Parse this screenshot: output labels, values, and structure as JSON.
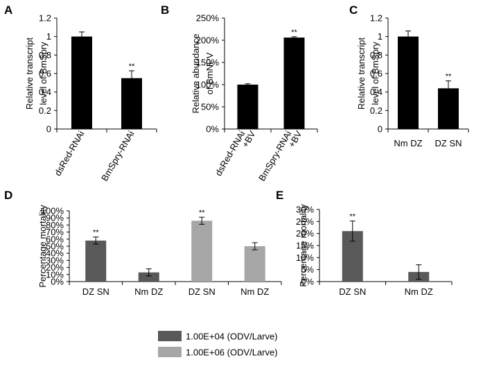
{
  "chart_data": [
    {
      "panel": "A",
      "type": "bar",
      "categories": [
        "dsRed-RNAi",
        "BmSpry-RNAi"
      ],
      "values": [
        1.0,
        0.55
      ],
      "errors": [
        0.05,
        0.08
      ],
      "significance": [
        "",
        "**"
      ],
      "ylabel": [
        "Relative transcript",
        "level of BmSpry"
      ],
      "ylim": [
        0,
        1.2
      ],
      "yticks": [
        "0",
        "0.2",
        "0.4",
        "0.6",
        "0.8",
        "1",
        "1.2"
      ],
      "bar_color": "#000000"
    },
    {
      "panel": "B",
      "type": "bar",
      "categories": [
        [
          "dsRed-RNAi",
          "+BV"
        ],
        [
          "BmSpry-RNAi",
          "+BV"
        ]
      ],
      "values": [
        100,
        206
      ],
      "errors": [
        2,
        2
      ],
      "significance": [
        "",
        "**"
      ],
      "ylabel": [
        "Relative abundance",
        "of BmNPV"
      ],
      "ylim": [
        0,
        250
      ],
      "yticks": [
        "0%",
        "50%",
        "100%",
        "150%",
        "200%",
        "250%"
      ],
      "bar_color": "#000000"
    },
    {
      "panel": "C",
      "type": "bar",
      "categories": [
        "Nm DZ",
        "DZ SN"
      ],
      "values": [
        1.0,
        0.44
      ],
      "errors": [
        0.06,
        0.08
      ],
      "significance": [
        "",
        "**"
      ],
      "ylabel": [
        "Relative transcript",
        "level of BmSpry"
      ],
      "ylim": [
        0,
        1.2
      ],
      "yticks": [
        "0",
        "0.2",
        "0.4",
        "0.6",
        "0.8",
        "1",
        "1.2"
      ],
      "bar_color": "#000000"
    },
    {
      "panel": "D",
      "type": "bar",
      "categories": [
        "DZ SN",
        "Nm DZ",
        "DZ SN",
        "Nm DZ"
      ],
      "values": [
        58,
        13,
        86,
        50
      ],
      "errors": [
        5,
        5,
        5,
        5
      ],
      "significance": [
        "**",
        "",
        "**",
        ""
      ],
      "bar_series": [
        0,
        0,
        1,
        1
      ],
      "series": [
        {
          "name": "1.00E+04 (ODV/Larve)",
          "color": "#595959"
        },
        {
          "name": "1.00E+06 (ODV/Larve)",
          "color": "#a6a6a6"
        }
      ],
      "ylabel": [
        "Percentage  mortality"
      ],
      "ylim": [
        0,
        100
      ],
      "yticks": [
        "0%",
        "10%",
        "20%",
        "30%",
        "40%",
        "50%",
        "60%",
        "70%",
        "80%",
        "90%",
        "100%"
      ],
      "legend_position": "bottom"
    },
    {
      "panel": "E",
      "type": "bar",
      "categories": [
        "DZ SN",
        "Nm DZ"
      ],
      "values": [
        21,
        4
      ],
      "errors": [
        4.2,
        3
      ],
      "significance": [
        "**",
        ""
      ],
      "ylabel": [
        "Percentage  mortality"
      ],
      "ylim": [
        0,
        30
      ],
      "yticks": [
        "0%",
        "5%",
        "10%",
        "15%",
        "20%",
        "25%",
        "30%"
      ],
      "bar_color": "#595959"
    }
  ]
}
